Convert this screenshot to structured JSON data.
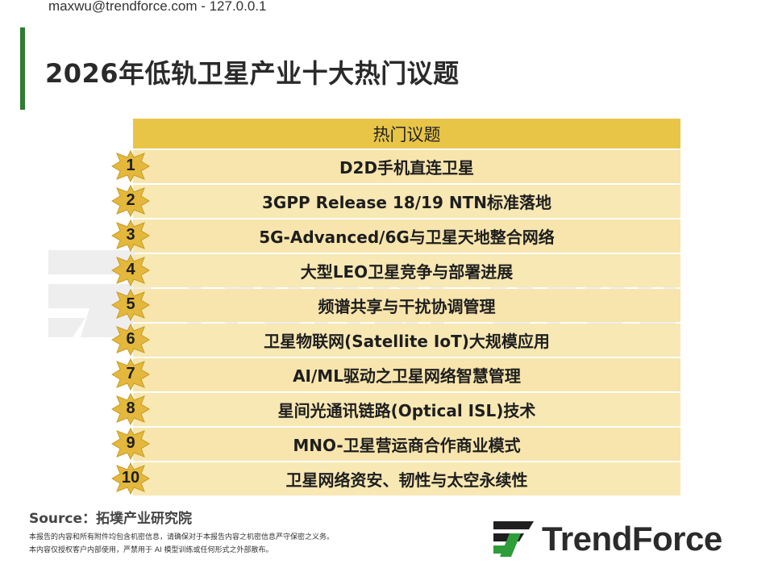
{
  "header": {
    "user_line": "maxwu@trendforce.com - 127.0.0.1",
    "title": "2026年低轨卫星产业十大热门议题"
  },
  "table": {
    "heading": "热门议题",
    "topics": [
      {
        "rank": "1",
        "text": "D2D手机直连卫星"
      },
      {
        "rank": "2",
        "text": "3GPP Release 18/19 NTN标准落地"
      },
      {
        "rank": "3",
        "text": "5G-Advanced/6G与卫星天地整合网络"
      },
      {
        "rank": "4",
        "text": "大型LEO卫星竞争与部署进展"
      },
      {
        "rank": "5",
        "text": "频谱共享与干扰协调管理"
      },
      {
        "rank": "6",
        "text": "卫星物联网(Satellite IoT)大规模应用"
      },
      {
        "rank": "7",
        "text": "AI/ML驱动之卫星网络智慧管理"
      },
      {
        "rank": "8",
        "text": "星间光通讯链路(Optical ISL)技术"
      },
      {
        "rank": "9",
        "text": "MNO-卫星营运商合作商业模式"
      },
      {
        "rank": "10",
        "text": "卫星网络资安、韧性与太空永续性"
      }
    ]
  },
  "footer": {
    "source": "Source：拓墣产业研究院",
    "disclaimer_1": "本报告的内容和所有附件均包含机密信息，请确保对于本报告内容之机密信息严守保密之义务。",
    "disclaimer_2": "本内容仅授权客户内部使用，严禁用于 AI 模型训练或任何形式之外部散布。"
  },
  "logo": {
    "text": "TrendForce",
    "watermark_text": "TrendForce"
  },
  "colors": {
    "accent_green": "#2e7d32",
    "header_gold": "#e8c547",
    "row_fill": "#f7e8b4",
    "badge_gold": "#e3b83c"
  }
}
